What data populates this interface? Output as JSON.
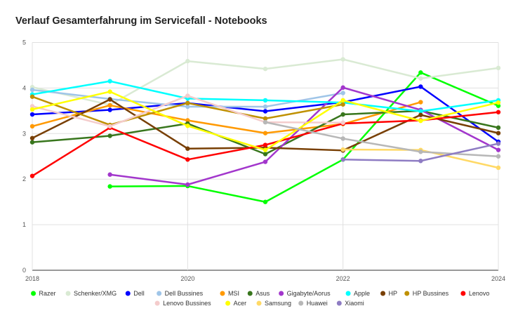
{
  "chart_data": {
    "type": "line",
    "title": "Verlauf Gesamterfahrung im Servicefall - Notebooks",
    "xlabel": "",
    "ylabel": "",
    "x": [
      2018,
      2019,
      2020,
      2021,
      2022,
      2023,
      2024
    ],
    "x_ticks": [
      "2018",
      "2020",
      "2022",
      "2024"
    ],
    "y_ticks": [
      "0",
      "1",
      "2",
      "3",
      "4",
      "5"
    ],
    "xlim": [
      2018,
      2024
    ],
    "ylim": [
      0,
      5
    ],
    "grid": true,
    "legend_position": "bottom",
    "series": [
      {
        "name": "Razer",
        "color": "#00ff00",
        "values": [
          null,
          1.84,
          1.85,
          1.5,
          2.43,
          4.34,
          3.61
        ]
      },
      {
        "name": "Schenker/XMG",
        "color": "#d9ead3",
        "values": [
          4.02,
          3.63,
          4.59,
          4.42,
          4.63,
          4.21,
          4.44
        ]
      },
      {
        "name": "Dell",
        "color": "#0000ff",
        "values": [
          3.42,
          3.52,
          3.67,
          3.49,
          3.69,
          4.03,
          2.82
        ]
      },
      {
        "name": "Dell Bussines",
        "color": "#9fc5e8",
        "values": [
          3.96,
          3.76,
          3.59,
          3.59,
          3.89,
          null,
          null
        ]
      },
      {
        "name": "MSI",
        "color": "#ff9900",
        "values": [
          3.16,
          3.62,
          3.29,
          3.01,
          3.21,
          3.69,
          null
        ]
      },
      {
        "name": "Asus",
        "color": "#38761d",
        "values": [
          2.81,
          2.95,
          3.22,
          2.55,
          3.42,
          3.5,
          3.13
        ]
      },
      {
        "name": "Gigabyte/Aorus",
        "color": "#a236cc",
        "values": [
          null,
          2.1,
          1.88,
          2.38,
          4.01,
          3.52,
          2.64
        ]
      },
      {
        "name": "Apple",
        "color": "#00ffff",
        "values": [
          3.86,
          4.15,
          3.77,
          3.73,
          3.68,
          3.49,
          3.73
        ]
      },
      {
        "name": "HP",
        "color": "#783f04",
        "values": [
          2.9,
          3.75,
          2.67,
          2.69,
          2.63,
          3.41,
          3.01
        ]
      },
      {
        "name": "HP Bussines",
        "color": "#bf9000",
        "values": [
          3.81,
          3.19,
          3.67,
          3.33,
          3.64,
          null,
          null
        ]
      },
      {
        "name": "Lenovo",
        "color": "#ff0000",
        "values": [
          2.07,
          3.13,
          2.43,
          2.75,
          3.22,
          3.29,
          3.47
        ]
      },
      {
        "name": "Lenovo Bussines",
        "color": "#f4cccc",
        "values": [
          3.6,
          3.16,
          3.83,
          3.25,
          3.24,
          null,
          null
        ]
      },
      {
        "name": "Acer",
        "color": "#ffff00",
        "values": [
          3.53,
          3.92,
          3.17,
          2.64,
          3.73,
          3.28,
          3.68
        ]
      },
      {
        "name": "Samsung",
        "color": "#ffd966",
        "values": [
          null,
          null,
          null,
          null,
          2.65,
          2.64,
          2.25
        ]
      },
      {
        "name": "Huawei",
        "color": "#b7b7b7",
        "values": [
          null,
          null,
          null,
          3.25,
          2.89,
          2.6,
          2.5
        ]
      },
      {
        "name": "Xiaomi",
        "color": "#8e7cc3",
        "values": [
          null,
          null,
          null,
          null,
          2.43,
          2.4,
          2.78
        ]
      }
    ]
  }
}
